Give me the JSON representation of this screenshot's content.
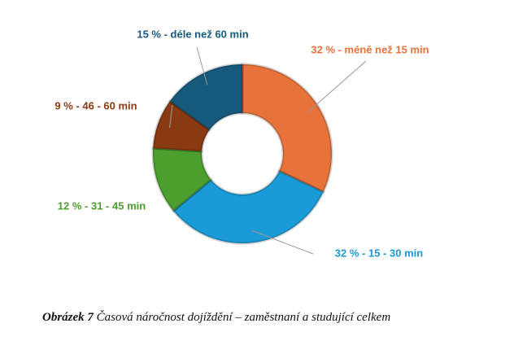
{
  "chart_data": {
    "type": "donut",
    "values": [
      32,
      32,
      12,
      9,
      15
    ],
    "value_labels": [
      "32 % - méně než 15  min",
      "32 % - 15 - 30 min",
      "12 % - 31 - 45 min",
      "9 % - 46 - 60 min",
      "15 % - déle než 60 min"
    ],
    "colors": [
      "#e8733a",
      "#1a9ad6",
      "#4c9e2e",
      "#8a3a12",
      "#155a7c"
    ]
  },
  "caption": {
    "label": "Obrázek 7",
    "text": " Časová náročnost dojíždění – zaměstnaní a studující celkem"
  }
}
